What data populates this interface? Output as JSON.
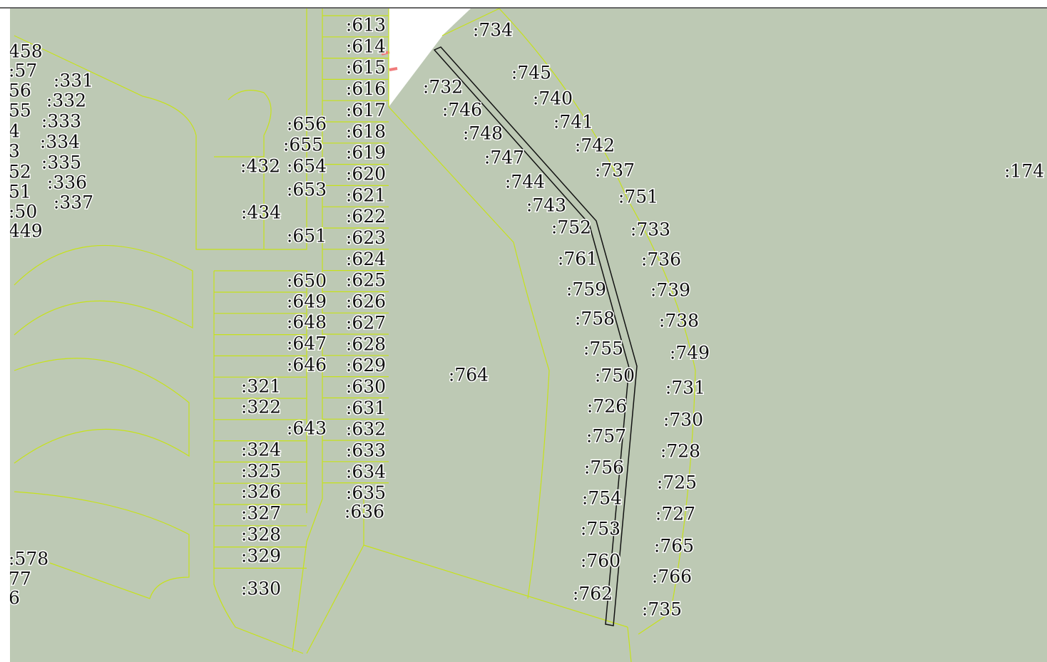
{
  "labels": [
    ":613",
    ":614",
    ":615",
    ":616",
    ":617",
    ":618",
    ":619",
    ":620",
    ":621",
    ":622",
    ":623",
    ":624",
    ":625",
    ":626",
    ":627",
    ":628",
    ":629",
    ":630",
    ":631",
    ":632",
    ":633",
    ":634",
    ":635",
    ":636",
    ":656",
    ":655",
    ":432",
    ":654",
    ":653",
    ":434",
    ":651",
    ":650",
    ":649",
    ":648",
    ":647",
    ":646",
    ":321",
    ":322",
    ":643",
    ":324",
    ":325",
    ":326",
    ":327",
    ":328",
    ":329",
    ":330",
    ":331",
    ":332",
    ":333",
    ":334",
    ":335",
    ":336",
    ":337",
    "458",
    ":57",
    "56",
    "55",
    "4",
    "3",
    "52",
    "51",
    ":50",
    "449",
    ":578",
    "77",
    "6",
    ":734",
    ":745",
    ":732",
    ":740",
    ":746",
    ":741",
    ":748",
    ":742",
    ":747",
    ":737",
    ":744",
    ":751",
    ":743",
    ":752",
    ":733",
    ":761",
    ":736",
    ":759",
    ":739",
    ":758",
    ":738",
    ":755",
    ":749",
    ":750",
    ":731",
    ":726",
    ":730",
    ":757",
    ":728",
    ":756",
    ":725",
    ":754",
    ":727",
    ":753",
    ":765",
    ":760",
    ":766",
    ":762",
    ":735",
    ":764",
    ":174"
  ]
}
